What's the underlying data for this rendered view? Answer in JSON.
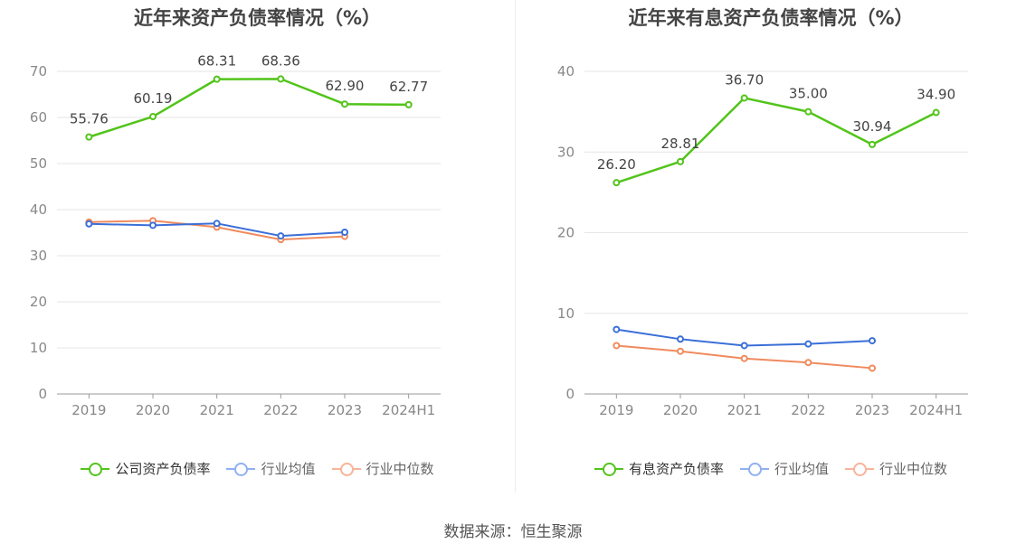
{
  "chart_data": [
    {
      "type": "line",
      "title": "近年来资产负债率情况（%）",
      "categories": [
        "2019",
        "2020",
        "2021",
        "2022",
        "2023",
        "2024H1"
      ],
      "ylim": [
        0,
        70
      ],
      "yticks": [
        "0",
        "10",
        "20",
        "30",
        "40",
        "50",
        "60",
        "70"
      ],
      "grid": true,
      "legend_position": "bottom",
      "series": [
        {
          "name": "公司资产负债率",
          "color": "#52c41a",
          "values": [
            55.76,
            60.19,
            68.31,
            68.36,
            62.9,
            62.77
          ],
          "labels": [
            "55.76",
            "60.19",
            "68.31",
            "68.36",
            "62.90",
            "62.77"
          ]
        },
        {
          "name": "行业均值",
          "color": "#3a6fd8",
          "values": [
            36.9,
            36.6,
            37.0,
            34.3,
            35.1,
            null
          ]
        },
        {
          "name": "行业中位数",
          "color": "#f08a5d",
          "values": [
            37.3,
            37.6,
            36.2,
            33.5,
            34.2,
            null
          ]
        }
      ]
    },
    {
      "type": "line",
      "title": "近年来有息资产负债率情况（%）",
      "categories": [
        "2019",
        "2020",
        "2021",
        "2022",
        "2023",
        "2024H1"
      ],
      "ylim": [
        0,
        40
      ],
      "yticks": [
        "0",
        "10",
        "20",
        "30",
        "40"
      ],
      "grid": true,
      "legend_position": "bottom",
      "series": [
        {
          "name": "有息资产负债率",
          "color": "#52c41a",
          "values": [
            26.2,
            28.81,
            36.7,
            35.0,
            30.94,
            34.9
          ],
          "labels": [
            "26.20",
            "28.81",
            "36.70",
            "35.00",
            "30.94",
            "34.90"
          ]
        },
        {
          "name": "行业均值",
          "color": "#3a6fd8",
          "values": [
            8.0,
            6.8,
            6.0,
            6.2,
            6.6,
            null
          ]
        },
        {
          "name": "行业中位数",
          "color": "#f08a5d",
          "values": [
            6.0,
            5.3,
            4.4,
            3.9,
            3.2,
            null
          ]
        }
      ]
    }
  ],
  "legend_colors": {
    "primary": "#52c41a",
    "mean": "#8fb1f0",
    "median": "#f7b49a"
  },
  "source": "数据来源：恒生聚源"
}
